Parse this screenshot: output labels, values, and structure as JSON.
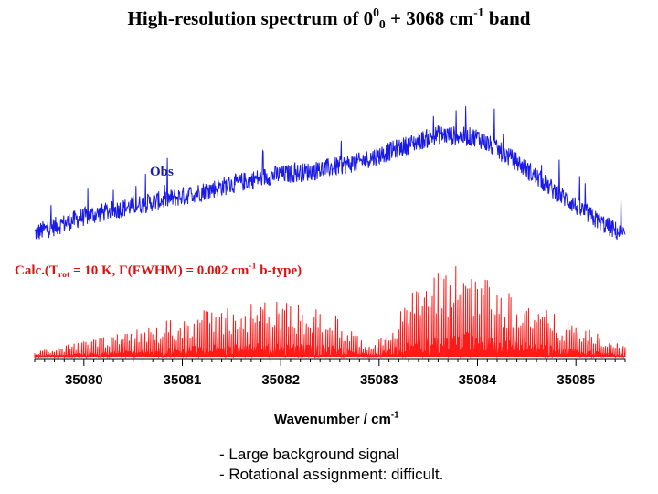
{
  "title": {
    "prefix": "High-resolution spectrum of 0",
    "sup": "0",
    "sub": "0",
    "suffix_a": " + 3068 cm",
    "suffix_sup": "-1",
    "suffix_b": " band"
  },
  "obs_label": "Obs",
  "calc_label": {
    "a": "Calc.(T",
    "a_sub": "rot",
    "b": " = 10 K, Γ(FWHM) = 0.002 cm",
    "b_sup": "-1",
    "c": " b-type)"
  },
  "xlabel": {
    "text": "Wavenumber / cm",
    "sup": "-1"
  },
  "notes": [
    "- Large background signal",
    "- Rotational assignment: difficult."
  ],
  "chart_data": {
    "type": "line",
    "xlim": [
      35079.5,
      35085.5
    ],
    "x_ticks": [
      35080,
      35081,
      35082,
      35083,
      35084,
      35085
    ],
    "x_tick_labels": [
      "35080",
      "35081",
      "35082",
      "35083",
      "35084",
      "35085"
    ],
    "grid": false,
    "series": [
      {
        "name": "Obs",
        "color": "#1a1ae6",
        "envelope_x": [
          35079.5,
          35080.0,
          35080.5,
          35081.0,
          35081.4,
          35081.9,
          35082.3,
          35082.8,
          35083.2,
          35083.6,
          35084.0,
          35084.4,
          35084.8,
          35085.2,
          35085.5
        ],
        "envelope_y": [
          0.1,
          0.22,
          0.3,
          0.37,
          0.44,
          0.52,
          0.55,
          0.62,
          0.72,
          0.82,
          0.8,
          0.62,
          0.4,
          0.2,
          0.08
        ]
      },
      {
        "name": "Calc.",
        "color": "#ff1a1a",
        "envelope_x": [
          35079.5,
          35080.0,
          35080.5,
          35081.0,
          35081.5,
          35082.0,
          35082.5,
          35082.9,
          35083.0,
          35083.4,
          35083.9,
          35084.3,
          35084.8,
          35085.5
        ],
        "envelope_y": [
          0.05,
          0.15,
          0.25,
          0.4,
          0.5,
          0.55,
          0.45,
          0.1,
          0.18,
          0.7,
          0.95,
          0.65,
          0.4,
          0.1
        ]
      }
    ]
  }
}
